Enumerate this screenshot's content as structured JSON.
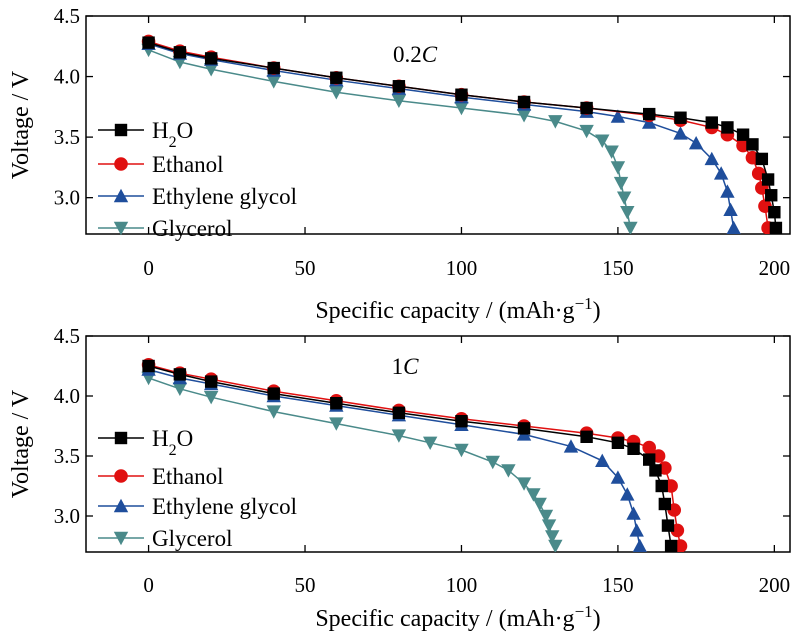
{
  "chart_data": [
    {
      "type": "line",
      "annotation": "0.2C",
      "xlabel": "Specific capacity / (mAh·g⁻¹)",
      "ylabel": "Voltage / V",
      "xlim": [
        -20,
        205
      ],
      "ylim": [
        2.7,
        4.5
      ],
      "xticks": [
        0,
        50,
        100,
        150,
        200
      ],
      "yticks": [
        3.0,
        3.5,
        4.0,
        4.5
      ],
      "grid": false,
      "legend_position": "left",
      "series": [
        {
          "name": "H₂O",
          "color": "#000000",
          "marker": "square",
          "x": [
            0,
            10,
            20,
            40,
            60,
            80,
            100,
            120,
            140,
            160,
            170,
            180,
            185,
            190,
            193,
            196,
            198,
            199,
            200,
            200.5
          ],
          "y": [
            4.28,
            4.2,
            4.15,
            4.07,
            3.99,
            3.92,
            3.85,
            3.79,
            3.74,
            3.69,
            3.66,
            3.62,
            3.58,
            3.52,
            3.44,
            3.32,
            3.15,
            3.02,
            2.88,
            2.75
          ]
        },
        {
          "name": "Ethanol",
          "color": "#e01010",
          "marker": "circle",
          "x": [
            0,
            10,
            20,
            40,
            60,
            80,
            100,
            120,
            140,
            160,
            170,
            180,
            185,
            190,
            193,
            195,
            196,
            197,
            198
          ],
          "y": [
            4.29,
            4.21,
            4.16,
            4.07,
            3.99,
            3.92,
            3.85,
            3.79,
            3.74,
            3.68,
            3.64,
            3.58,
            3.52,
            3.43,
            3.33,
            3.2,
            3.08,
            2.93,
            2.75
          ]
        },
        {
          "name": "Ethylene glycol",
          "color": "#1f4e9c",
          "marker": "triangle-up",
          "x": [
            0,
            10,
            20,
            40,
            60,
            80,
            100,
            120,
            140,
            150,
            160,
            170,
            175,
            180,
            183,
            185,
            186,
            187
          ],
          "y": [
            4.27,
            4.19,
            4.14,
            4.05,
            3.97,
            3.9,
            3.83,
            3.77,
            3.71,
            3.67,
            3.62,
            3.53,
            3.45,
            3.32,
            3.2,
            3.05,
            2.9,
            2.75
          ]
        },
        {
          "name": "Glycerol",
          "color": "#4a8a8a",
          "marker": "triangle-down",
          "x": [
            0,
            10,
            20,
            40,
            60,
            80,
            100,
            120,
            130,
            140,
            145,
            148,
            150,
            151,
            152,
            153,
            154
          ],
          "y": [
            4.22,
            4.12,
            4.06,
            3.96,
            3.87,
            3.8,
            3.74,
            3.68,
            3.63,
            3.55,
            3.47,
            3.38,
            3.25,
            3.12,
            3.0,
            2.88,
            2.75
          ]
        }
      ]
    },
    {
      "type": "line",
      "annotation": "1C",
      "xlabel": "Specific capacity / (mAh·g⁻¹)",
      "ylabel": "Voltage / V",
      "xlim": [
        -20,
        205
      ],
      "ylim": [
        2.7,
        4.5
      ],
      "xticks": [
        0,
        50,
        100,
        150,
        200
      ],
      "yticks": [
        3.0,
        3.5,
        4.0,
        4.5
      ],
      "grid": false,
      "legend_position": "left",
      "series": [
        {
          "name": "H₂O",
          "color": "#000000",
          "marker": "square",
          "x": [
            0,
            10,
            20,
            40,
            60,
            80,
            100,
            120,
            140,
            150,
            155,
            160,
            162,
            164,
            165,
            166,
            167
          ],
          "y": [
            4.25,
            4.18,
            4.12,
            4.02,
            3.94,
            3.86,
            3.79,
            3.73,
            3.66,
            3.61,
            3.56,
            3.47,
            3.38,
            3.25,
            3.1,
            2.92,
            2.75
          ]
        },
        {
          "name": "Ethanol",
          "color": "#e01010",
          "marker": "circle",
          "x": [
            0,
            10,
            20,
            40,
            60,
            80,
            100,
            120,
            140,
            150,
            155,
            160,
            163,
            165,
            167,
            168,
            169,
            170
          ],
          "y": [
            4.26,
            4.19,
            4.14,
            4.04,
            3.96,
            3.88,
            3.81,
            3.75,
            3.69,
            3.65,
            3.62,
            3.57,
            3.5,
            3.4,
            3.25,
            3.05,
            2.88,
            2.75
          ]
        },
        {
          "name": "Ethylene glycol",
          "color": "#1f4e9c",
          "marker": "triangle-up",
          "x": [
            0,
            10,
            20,
            40,
            60,
            80,
            100,
            120,
            135,
            145,
            150,
            153,
            155,
            156,
            157
          ],
          "y": [
            4.22,
            4.15,
            4.1,
            4.0,
            3.92,
            3.84,
            3.76,
            3.68,
            3.58,
            3.46,
            3.32,
            3.18,
            3.02,
            2.88,
            2.75
          ]
        },
        {
          "name": "Glycerol",
          "color": "#4a8a8a",
          "marker": "triangle-down",
          "x": [
            0,
            10,
            20,
            40,
            60,
            80,
            90,
            100,
            110,
            115,
            120,
            123,
            125,
            127,
            128,
            129,
            130
          ],
          "y": [
            4.15,
            4.06,
            3.99,
            3.87,
            3.77,
            3.67,
            3.61,
            3.55,
            3.45,
            3.38,
            3.27,
            3.18,
            3.1,
            3.0,
            2.92,
            2.83,
            2.75
          ]
        }
      ]
    }
  ]
}
